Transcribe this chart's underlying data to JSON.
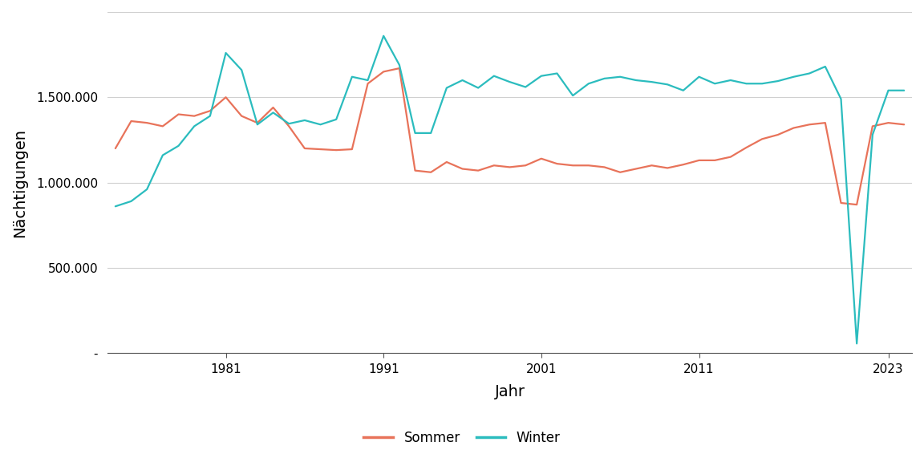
{
  "title": "",
  "xlabel": "Jahr",
  "ylabel": "Nächtigungen",
  "sommer_color": "#E8735A",
  "winter_color": "#2BBCBE",
  "legend_labels": [
    "Sommer",
    "Winter"
  ],
  "background_color": "#FFFFFF",
  "plot_bg_color": "#FFFFFF",
  "grid_color": "#D0D0D0",
  "years": [
    1974,
    1975,
    1976,
    1977,
    1978,
    1979,
    1980,
    1981,
    1982,
    1983,
    1984,
    1985,
    1986,
    1987,
    1988,
    1989,
    1990,
    1991,
    1992,
    1993,
    1994,
    1995,
    1996,
    1997,
    1998,
    1999,
    2000,
    2001,
    2002,
    2003,
    2004,
    2005,
    2006,
    2007,
    2008,
    2009,
    2010,
    2011,
    2012,
    2013,
    2014,
    2015,
    2016,
    2017,
    2018,
    2019,
    2020,
    2021,
    2022,
    2023,
    2024
  ],
  "sommer": [
    1200000,
    1360000,
    1350000,
    1330000,
    1400000,
    1390000,
    1420000,
    1500000,
    1390000,
    1350000,
    1440000,
    1330000,
    1200000,
    1195000,
    1190000,
    1195000,
    1580000,
    1650000,
    1670000,
    1070000,
    1060000,
    1120000,
    1080000,
    1070000,
    1100000,
    1090000,
    1100000,
    1140000,
    1110000,
    1100000,
    1100000,
    1090000,
    1060000,
    1080000,
    1100000,
    1085000,
    1105000,
    1130000,
    1130000,
    1150000,
    1205000,
    1255000,
    1280000,
    1320000,
    1340000,
    1350000,
    880000,
    870000,
    1330000,
    1350000,
    1340000
  ],
  "winter": [
    860000,
    890000,
    960000,
    1160000,
    1215000,
    1330000,
    1390000,
    1760000,
    1660000,
    1340000,
    1410000,
    1345000,
    1365000,
    1340000,
    1370000,
    1620000,
    1600000,
    1860000,
    1690000,
    1290000,
    1290000,
    1555000,
    1600000,
    1555000,
    1625000,
    1590000,
    1560000,
    1625000,
    1640000,
    1510000,
    1580000,
    1610000,
    1620000,
    1600000,
    1590000,
    1575000,
    1540000,
    1620000,
    1580000,
    1600000,
    1580000,
    1580000,
    1595000,
    1620000,
    1640000,
    1680000,
    1490000,
    55000,
    1280000,
    1540000,
    1540000
  ],
  "ylim": [
    0,
    2000000
  ],
  "yticks": [
    0,
    500000,
    1000000,
    1500000
  ],
  "ytick_labels": [
    "-",
    "500.000",
    "1.000.000",
    "1.500.000"
  ],
  "extra_gridline": 2000000,
  "xticks": [
    1981,
    1991,
    2001,
    2011,
    2023
  ],
  "xlim_left": 1973.5,
  "xlim_right": 2024.5,
  "line_width": 1.6
}
